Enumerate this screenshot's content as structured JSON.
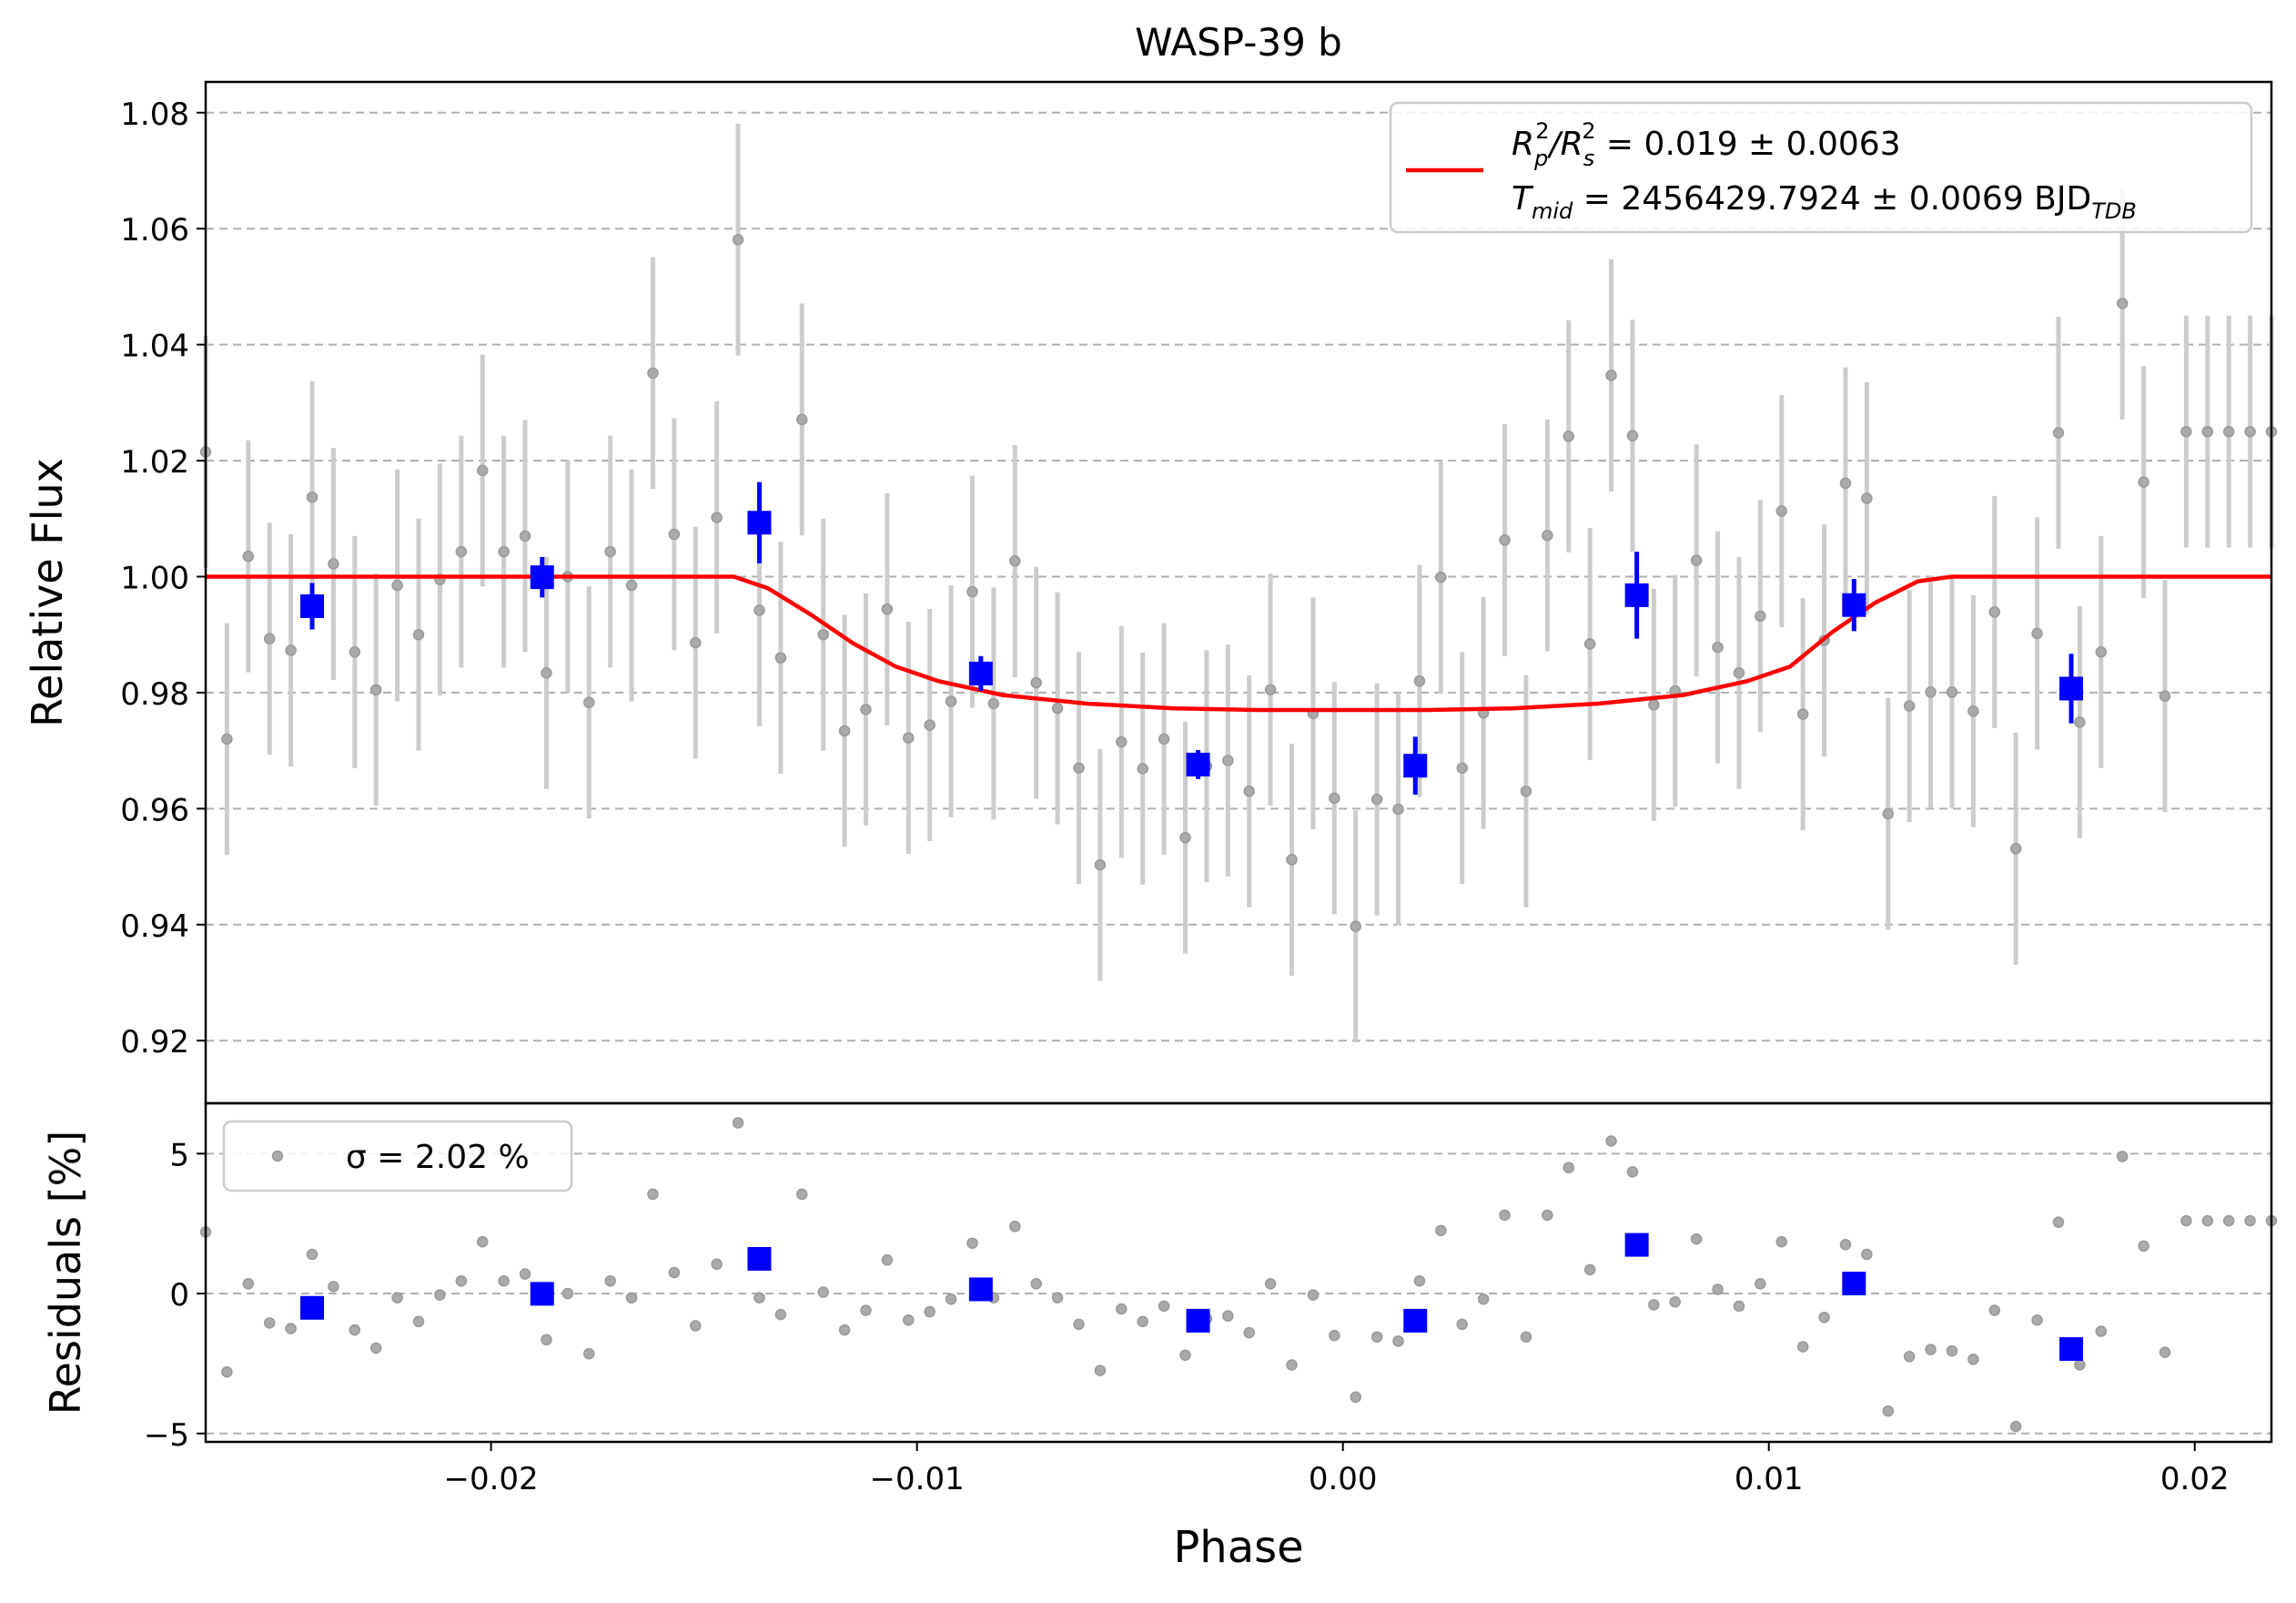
{
  "chart_data": [
    {
      "type": "scatter",
      "title": "WASP-39 b",
      "ylabel": "Relative Flux",
      "xlabel": "",
      "xlim": [
        -0.0267,
        0.0218
      ],
      "ylim": [
        0.9092,
        1.0853
      ],
      "grid": "horizontal dashed",
      "legend_position": "upper right",
      "yticks": [
        "0.92",
        "0.94",
        "0.96",
        "0.98",
        "1.00",
        "1.02",
        "1.04",
        "1.06",
        "1.08"
      ],
      "legend": {
        "line1": {
          "a": "R",
          "asub": "p",
          "asup": "2",
          "b": "/R",
          "bsub": "s",
          "bsup": "2",
          "c": " = 0.019 ± 0.0063"
        },
        "line2": {
          "a": "T",
          "asub": "mid",
          "b": " = 2456429.7924 ± 0.0069 BJD",
          "bsub": "TDB"
        }
      },
      "colors": {
        "model": "#ff0000",
        "binned": "#0000ff",
        "raw": "#999999",
        "errorbar": "#cccccc"
      },
      "model": {
        "name": "transit model",
        "x": [
          -0.0267,
          -0.0143,
          -0.0135,
          -0.0125,
          -0.0115,
          -0.0105,
          -0.0095,
          -0.008,
          -0.006,
          -0.004,
          -0.002,
          0.0,
          0.002,
          0.004,
          0.006,
          0.008,
          0.0095,
          0.0105,
          0.0115,
          0.0125,
          0.0135,
          0.0143,
          0.0218
        ],
        "y": [
          1.0,
          1.0,
          0.998,
          0.9935,
          0.9885,
          0.9845,
          0.982,
          0.9796,
          0.9781,
          0.9773,
          0.977,
          0.977,
          0.977,
          0.9773,
          0.9781,
          0.9796,
          0.982,
          0.9845,
          0.9905,
          0.9955,
          0.9992,
          1.0,
          1.0
        ]
      },
      "binned": {
        "x": [
          -0.0242,
          -0.0188,
          -0.0137,
          -0.0085,
          -0.0034,
          0.0017,
          0.0069,
          0.012,
          0.0171
        ],
        "y": [
          0.9949,
          0.9999,
          1.0093,
          0.9833,
          0.9676,
          0.9674,
          0.9968,
          0.9951,
          0.9807
        ],
        "err": [
          0.004,
          0.0035,
          0.007,
          0.003,
          0.0025,
          0.005,
          0.0075,
          0.0045,
          0.006
        ]
      },
      "raw": {
        "x": [
          -0.0267,
          -0.0262,
          -0.0257,
          -0.0252,
          -0.0247,
          -0.0242,
          -0.0237,
          -0.0232,
          -0.0227,
          -0.0222,
          -0.0217,
          -0.0212,
          -0.0207,
          -0.0202,
          -0.0197,
          -0.0192,
          -0.0187,
          -0.0182,
          -0.0177,
          -0.0172,
          -0.0167,
          -0.0162,
          -0.0157,
          -0.0152,
          -0.0147,
          -0.0142,
          -0.0137,
          -0.0132,
          -0.0127,
          -0.0122,
          -0.0117,
          -0.0112,
          -0.0107,
          -0.0102,
          -0.0097,
          -0.0092,
          -0.0087,
          -0.0082,
          -0.0077,
          -0.0072,
          -0.0067,
          -0.0062,
          -0.0057,
          -0.0052,
          -0.0047,
          -0.0042,
          -0.0037,
          -0.0032,
          -0.0027,
          -0.0022,
          -0.0017,
          -0.0012,
          -0.0007,
          -0.0002,
          0.0003,
          0.0008,
          0.0013,
          0.0018,
          0.0023,
          0.0028,
          0.0033,
          0.0038,
          0.0043,
          0.0048,
          0.0053,
          0.0058,
          0.0063,
          0.0068,
          0.0073,
          0.0078,
          0.0083,
          0.0088,
          0.0093,
          0.0098,
          0.0103,
          0.0108,
          0.0113,
          0.0118,
          0.0123,
          0.0128,
          0.0133,
          0.0138,
          0.0143,
          0.0148,
          0.0153,
          0.0158,
          0.0163,
          0.0168,
          0.0173,
          0.0178,
          0.0183,
          0.0188,
          0.0193,
          0.0198,
          0.0203,
          0.0208,
          0.0213,
          0.0218
        ],
        "y": [
          1.0215,
          0.972,
          1.0035,
          0.9893,
          0.9873,
          1.0137,
          1.0022,
          0.987,
          0.9805,
          0.9985,
          0.99,
          0.9995,
          1.0043,
          1.0183,
          1.0043,
          1.007,
          0.9834,
          1.0,
          0.9783,
          1.0043,
          0.9985,
          1.0351,
          1.0073,
          0.9886,
          1.0102,
          1.0581,
          0.9942,
          0.986,
          1.0271,
          0.99,
          0.9734,
          0.9771,
          0.9944,
          0.9722,
          0.9744,
          0.9785,
          0.9974,
          0.9781,
          1.0027,
          0.9817,
          0.9773,
          0.967,
          0.9503,
          0.9715,
          0.9669,
          0.972,
          0.955,
          0.9673,
          0.9683,
          0.963,
          0.9805,
          0.9512,
          0.9764,
          0.9618,
          0.9397,
          0.9616,
          0.9599,
          0.982,
          0.9999,
          0.967,
          0.9765,
          1.0063,
          0.963,
          1.0071,
          1.0242,
          0.9884,
          1.0347,
          1.0243,
          0.9779,
          0.9803,
          1.0028,
          0.9878,
          0.9834,
          0.9932,
          1.0113,
          0.9763,
          0.989,
          1.0161,
          1.0135,
          0.9591,
          0.9777,
          0.9801,
          0.9801,
          0.9768,
          0.9939,
          0.9531,
          0.9902,
          1.0248,
          0.9749,
          0.987,
          1.0471,
          1.0163,
          0.9794,
          1.025,
          1.025,
          1.025,
          1.025,
          1.025
        ],
        "err": 0.02
      }
    },
    {
      "type": "scatter",
      "title": "",
      "xlabel": "Phase",
      "ylabel": "Residuals [%]",
      "xlim": [
        -0.0267,
        0.0218
      ],
      "ylim": [
        -5.3,
        6.8
      ],
      "grid": "horizontal dashed",
      "legend_position": "upper left",
      "legend": {
        "text": "σ = 2.02 %"
      },
      "xticks": [
        "−0.02",
        "−0.01",
        "0.00",
        "0.01",
        "0.02"
      ],
      "yticks": [
        "−5",
        "0",
        "5"
      ],
      "binned": {
        "x": [
          -0.0242,
          -0.0188,
          -0.0137,
          -0.0085,
          -0.0034,
          0.0017,
          0.0069,
          0.012,
          0.0171
        ],
        "y": [
          -0.51,
          -0.01,
          1.24,
          0.15,
          -0.97,
          -0.97,
          1.74,
          0.36,
          -1.98
        ]
      },
      "raw": {
        "x": [
          -0.0267,
          -0.0262,
          -0.0257,
          -0.0252,
          -0.0247,
          -0.0242,
          -0.0237,
          -0.0232,
          -0.0227,
          -0.0222,
          -0.0217,
          -0.0212,
          -0.0207,
          -0.0202,
          -0.0197,
          -0.0192,
          -0.0187,
          -0.0182,
          -0.0177,
          -0.0172,
          -0.0167,
          -0.0162,
          -0.0157,
          -0.0152,
          -0.0147,
          -0.0142,
          -0.0137,
          -0.0132,
          -0.0127,
          -0.0122,
          -0.0117,
          -0.0112,
          -0.0107,
          -0.0102,
          -0.0097,
          -0.0092,
          -0.0087,
          -0.0082,
          -0.0077,
          -0.0072,
          -0.0067,
          -0.0062,
          -0.0057,
          -0.0052,
          -0.0047,
          -0.0042,
          -0.0037,
          -0.0032,
          -0.0027,
          -0.0022,
          -0.0017,
          -0.0012,
          -0.0007,
          -0.0002,
          0.0003,
          0.0008,
          0.0013,
          0.0018,
          0.0023,
          0.0028,
          0.0033,
          0.0038,
          0.0043,
          0.0048,
          0.0053,
          0.0058,
          0.0063,
          0.0068,
          0.0073,
          0.0078,
          0.0083,
          0.0088,
          0.0093,
          0.0098,
          0.0103,
          0.0108,
          0.0113,
          0.0118,
          0.0123,
          0.0128,
          0.0133,
          0.0138,
          0.0143,
          0.0148,
          0.0153,
          0.0158,
          0.0163,
          0.0168,
          0.0173,
          0.0178,
          0.0183,
          0.0188,
          0.0193,
          0.0198,
          0.0203,
          0.0208,
          0.0213,
          0.0218
        ],
        "y": [
          2.2,
          -2.8,
          0.35,
          -1.05,
          -1.25,
          1.4,
          0.25,
          -1.3,
          -1.95,
          -0.15,
          -1.0,
          -0.05,
          0.45,
          1.85,
          0.45,
          0.7,
          -1.65,
          0.0,
          -2.15,
          0.45,
          -0.15,
          3.55,
          0.75,
          -1.15,
          1.05,
          6.1,
          -0.15,
          -0.75,
          3.55,
          0.05,
          -1.3,
          -0.6,
          1.2,
          -0.95,
          -0.65,
          -0.2,
          1.8,
          -0.15,
          2.4,
          0.35,
          -0.15,
          -1.1,
          -2.75,
          -0.55,
          -1.0,
          -0.45,
          -2.2,
          -0.9,
          -0.8,
          -1.4,
          0.35,
          -2.55,
          -0.05,
          -1.5,
          -3.7,
          -1.55,
          -1.7,
          0.45,
          2.25,
          -1.1,
          -0.2,
          2.8,
          -1.55,
          2.8,
          4.5,
          0.85,
          5.45,
          4.35,
          -0.4,
          -0.3,
          1.95,
          0.15,
          -0.45,
          0.35,
          1.85,
          -1.9,
          -0.85,
          1.75,
          1.4,
          -4.2,
          -2.25,
          -2.0,
          -2.05,
          -2.35,
          -0.6,
          -4.75,
          -0.95,
          2.55,
          -2.55,
          -1.35,
          4.9,
          1.7,
          -2.1,
          2.6,
          2.6,
          2.6,
          2.6,
          2.6
        ]
      }
    }
  ]
}
